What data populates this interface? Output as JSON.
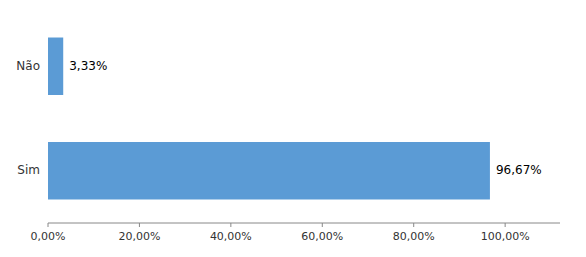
{
  "chart_data": {
    "type": "bar",
    "orientation": "horizontal",
    "categories": [
      "Sim",
      "Não"
    ],
    "values": [
      96.67,
      3.33
    ],
    "value_labels": [
      "96,67%",
      "3,33%"
    ],
    "data_labels": true,
    "color": "#5B9BD5",
    "xlim": [
      0,
      112
    ],
    "xticks": [
      {
        "value": 0,
        "label": "0,00%"
      },
      {
        "value": 20,
        "label": "20,00%"
      },
      {
        "value": 40,
        "label": "40,00%"
      },
      {
        "value": 60,
        "label": "60,00%"
      },
      {
        "value": 80,
        "label": "80,00%"
      },
      {
        "value": 100,
        "label": "100,00%"
      }
    ],
    "grid": false
  }
}
